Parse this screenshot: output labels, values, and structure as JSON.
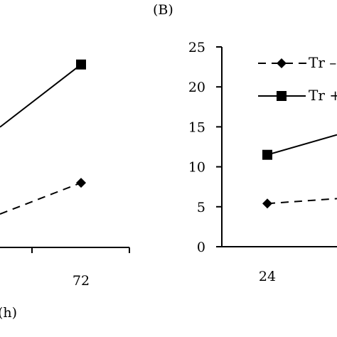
{
  "panel_b_label": "(B)",
  "chart_data": [
    {
      "panel": "A",
      "type": "line",
      "xlabel": "(h)",
      "x_tick_labels": [
        "72"
      ],
      "series": [
        {
          "name": "",
          "style": "solid",
          "marker": "square",
          "points": [
            {
              "x": 72,
              "y": 22.8
            }
          ]
        },
        {
          "name": "",
          "style": "dashed",
          "marker": "diamond",
          "points": [
            {
              "x": 72,
              "y": 8.0
            }
          ]
        }
      ]
    },
    {
      "panel": "B",
      "type": "line",
      "ylim": [
        0,
        25
      ],
      "y_ticks": [
        0,
        5,
        10,
        15,
        20,
        25
      ],
      "x_tick_labels": [
        "24"
      ],
      "legend": {
        "placement": "top-right",
        "entries": [
          "Tr –",
          "Tr +"
        ]
      },
      "series": [
        {
          "name": "Tr –",
          "style": "dashed",
          "marker": "diamond",
          "points": [
            {
              "x": 24,
              "y": 5.4
            }
          ]
        },
        {
          "name": "Tr +",
          "style": "solid",
          "marker": "square",
          "points": [
            {
              "x": 24,
              "y": 11.5
            }
          ]
        }
      ]
    }
  ]
}
